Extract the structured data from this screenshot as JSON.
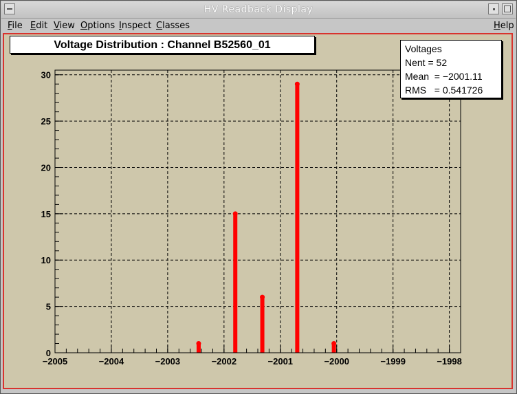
{
  "window": {
    "title": "HV Readback Display"
  },
  "menu": {
    "file": "File",
    "edit": "Edit",
    "view": "View",
    "options": "Options",
    "inspect": "Inspect",
    "classes": "Classes",
    "help": "Help"
  },
  "stats": {
    "name": "Voltages",
    "nent": "Nent = 52",
    "mean": "Mean  = −2001.11",
    "rms": "RMS   = 0.541726"
  },
  "colors": {
    "bars": "#ff0000",
    "canvas": "#cec7ab",
    "frame": "#d8332e"
  },
  "chart_data": {
    "type": "bar",
    "title": "Voltage Distribution : Channel B52560_01",
    "xlabel": "",
    "ylabel": "",
    "xlim": [
      -2005,
      -1997.8
    ],
    "ylim": [
      0,
      30.5
    ],
    "xticks": [
      -2005,
      -2004,
      -2003,
      -2002,
      -2001,
      -2000,
      -1999,
      -1998
    ],
    "xtick_labels": [
      "−2005",
      "−2004",
      "−2003",
      "−2002",
      "−2001",
      "−2000",
      "−1999",
      "−1998"
    ],
    "yticks": [
      0,
      5,
      10,
      15,
      20,
      25,
      30
    ],
    "ytick_labels": [
      "0",
      "5",
      "10",
      "15",
      "20",
      "25",
      "30"
    ],
    "grid": true,
    "x": [
      -2002.45,
      -2001.8,
      -2001.32,
      -2000.7,
      -2000.05
    ],
    "values": [
      1,
      15,
      6,
      29,
      1
    ]
  }
}
